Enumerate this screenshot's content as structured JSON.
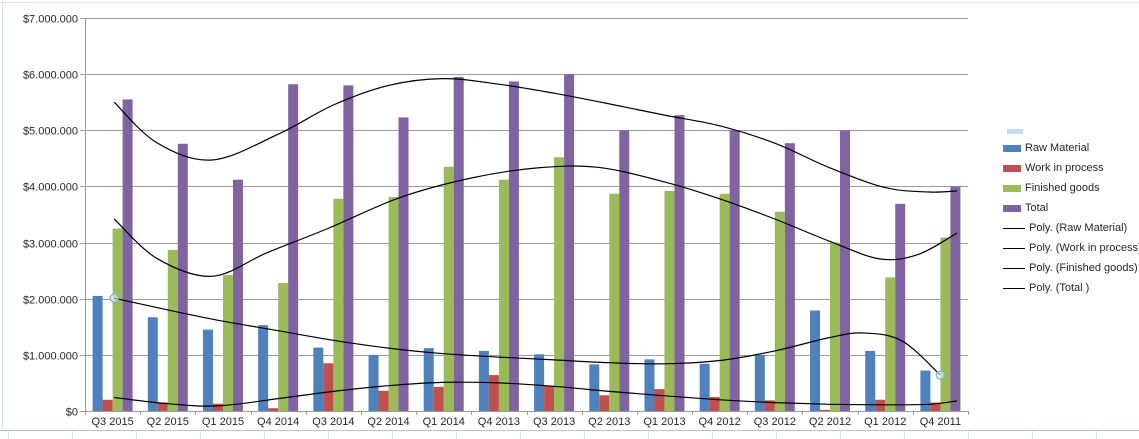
{
  "chart_data": {
    "type": "bar",
    "title": "",
    "xlabel": "",
    "ylabel": "",
    "grid": "horizontal",
    "legend_position": "right",
    "categories": [
      "Q3 2015",
      "Q2 2015",
      "Q1 2015",
      "Q4 2014",
      "Q3 2014",
      "Q2 2014",
      "Q1 2014",
      "Q4 2013",
      "Q3 2013",
      "Q2 2013",
      "Q1 2013",
      "Q4 2012",
      "Q3 2012",
      "Q2 2012",
      "Q1 2012",
      "Q4 2011"
    ],
    "series": [
      {
        "name": "Raw Material",
        "color": "#4F81BD",
        "values": [
          2050000,
          1670000,
          1450000,
          1530000,
          1130000,
          1000000,
          1120000,
          1070000,
          1010000,
          830000,
          920000,
          840000,
          1000000,
          1790000,
          1070000,
          720000
        ]
      },
      {
        "name": "Work in process",
        "color": "#C0504D",
        "values": [
          200000,
          150000,
          130000,
          50000,
          850000,
          360000,
          430000,
          640000,
          450000,
          280000,
          390000,
          250000,
          190000,
          20000,
          200000,
          150000
        ]
      },
      {
        "name": "Finished goods",
        "color": "#9BBB59",
        "values": [
          3250000,
          2870000,
          2420000,
          2280000,
          3780000,
          3810000,
          4350000,
          4120000,
          4520000,
          3870000,
          3920000,
          3870000,
          3550000,
          3000000,
          2380000,
          3090000
        ]
      },
      {
        "name": "Total",
        "color": "#8064A2",
        "values": [
          5550000,
          4760000,
          4120000,
          5820000,
          5800000,
          5230000,
          5950000,
          5870000,
          6000000,
          5000000,
          5270000,
          5000000,
          4770000,
          5000000,
          3690000,
          4000000
        ]
      }
    ],
    "trendlines": [
      {
        "name": "Poly. (Raw Material)",
        "color": "#000000",
        "points_index_millions": [
          [
            0.03,
            2.01
          ],
          [
            1,
            1.8
          ],
          [
            2,
            1.6
          ],
          [
            3,
            1.43
          ],
          [
            4,
            1.26
          ],
          [
            5,
            1.12
          ],
          [
            6,
            1.02
          ],
          [
            7,
            0.96
          ],
          [
            8,
            0.91
          ],
          [
            9,
            0.86
          ],
          [
            10,
            0.84
          ],
          [
            11,
            0.9
          ],
          [
            12,
            1.07
          ],
          [
            13,
            1.31
          ],
          [
            13.6,
            1.39
          ],
          [
            14.3,
            1.25
          ],
          [
            15.0,
            0.64
          ]
        ]
      },
      {
        "name": "Poly. (Work in process)",
        "color": "#000000",
        "points_index_millions": [
          [
            0.03,
            0.24
          ],
          [
            1,
            0.13
          ],
          [
            1.9,
            0.09
          ],
          [
            3,
            0.22
          ],
          [
            4,
            0.35
          ],
          [
            5,
            0.45
          ],
          [
            6,
            0.51
          ],
          [
            7,
            0.5
          ],
          [
            8,
            0.44
          ],
          [
            9,
            0.35
          ],
          [
            10,
            0.27
          ],
          [
            11,
            0.2
          ],
          [
            12,
            0.15
          ],
          [
            13,
            0.12
          ],
          [
            14,
            0.11
          ],
          [
            14.8,
            0.12
          ],
          [
            15.3,
            0.18
          ]
        ]
      },
      {
        "name": "Poly. (Finished goods)",
        "color": "#000000",
        "points_index_millions": [
          [
            0.03,
            3.42
          ],
          [
            0.8,
            2.72
          ],
          [
            1.8,
            2.4
          ],
          [
            2.8,
            2.82
          ],
          [
            3.9,
            3.25
          ],
          [
            5.2,
            3.8
          ],
          [
            6.5,
            4.15
          ],
          [
            7.7,
            4.33
          ],
          [
            8.8,
            4.34
          ],
          [
            10,
            4.08
          ],
          [
            11,
            3.78
          ],
          [
            12,
            3.42
          ],
          [
            13,
            3.02
          ],
          [
            13.9,
            2.71
          ],
          [
            14.6,
            2.79
          ],
          [
            15.3,
            3.17
          ]
        ]
      },
      {
        "name": "Poly. (Total )",
        "color": "#000000",
        "points_index_millions": [
          [
            0.03,
            5.5
          ],
          [
            0.8,
            4.78
          ],
          [
            1.8,
            4.47
          ],
          [
            3,
            4.93
          ],
          [
            4,
            5.45
          ],
          [
            5,
            5.8
          ],
          [
            6,
            5.92
          ],
          [
            7,
            5.82
          ],
          [
            8,
            5.66
          ],
          [
            9,
            5.47
          ],
          [
            10,
            5.27
          ],
          [
            11,
            5.08
          ],
          [
            12,
            4.77
          ],
          [
            13,
            4.33
          ],
          [
            14,
            3.98
          ],
          [
            14.8,
            3.9
          ],
          [
            15.3,
            3.92
          ]
        ]
      }
    ],
    "markers": [
      {
        "name": "trendline-handle-start",
        "x_index": 0.03,
        "value_millions": 2.01
      },
      {
        "name": "trendline-handle-end",
        "x_index": 15.0,
        "value_millions": 0.64
      }
    ],
    "y_axis": {
      "min": 0,
      "max": 7000000,
      "tick_step": 1000000,
      "tick_labels": [
        "$0",
        "$1.000.000",
        "$2.000.000",
        "$3.000.000",
        "$4.000.000",
        "$5.000.000",
        "$6.000.000",
        "$7.000.000"
      ]
    }
  },
  "legend": {
    "items": [
      {
        "label": "Raw Material",
        "swatch": "bar",
        "color": "#4F81BD"
      },
      {
        "label": "Work in process",
        "swatch": "bar",
        "color": "#C0504D"
      },
      {
        "label": "Finished goods",
        "swatch": "bar",
        "color": "#9BBB59"
      },
      {
        "label": "Total",
        "swatch": "bar",
        "color": "#8064A2"
      },
      {
        "label": "Poly. (Raw Material)",
        "swatch": "line",
        "color": "#000000"
      },
      {
        "label": "Poly. (Work in process)",
        "swatch": "line",
        "color": "#000000"
      },
      {
        "label": "Poly. (Finished goods)",
        "swatch": "line",
        "color": "#000000"
      },
      {
        "label": "Poly. (Total )",
        "swatch": "line",
        "color": "#000000"
      }
    ]
  },
  "colors": {
    "gridline": "#9c9c9c",
    "axis_line": "#9c9c9c",
    "axis_text": "#262626",
    "trendline": "#000000",
    "marker_stroke": "#8DB4E2",
    "sheet_gridline": "#dde3ec",
    "sheet_bottom_line": "#b4c6da"
  }
}
